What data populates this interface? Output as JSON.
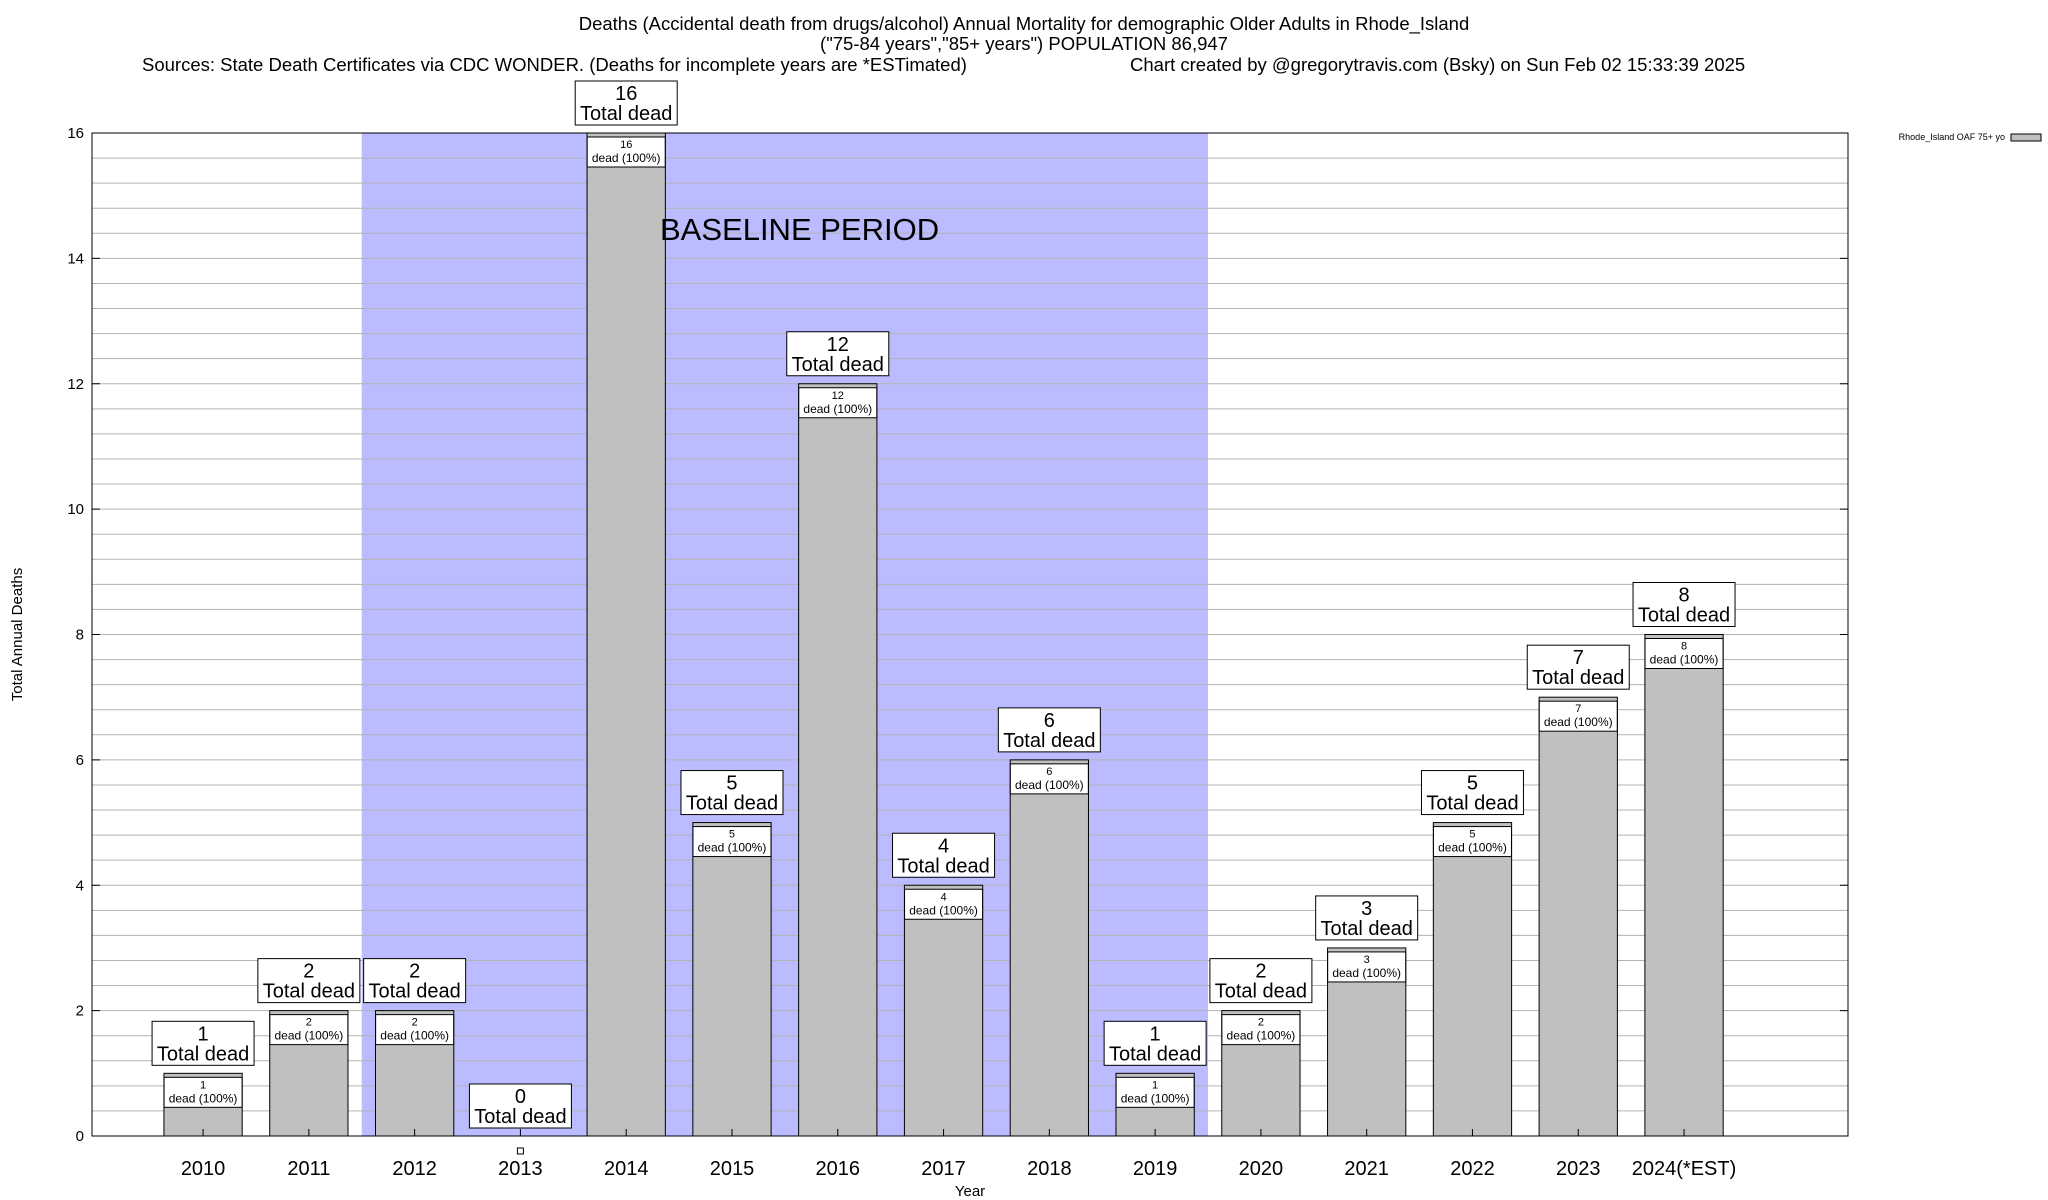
{
  "chart_data": {
    "type": "bar",
    "title": "Deaths (Accidental death from drugs/alcohol) Annual Mortality for demographic Older Adults in Rhode_Island",
    "subtitle": "(\"75-84 years\",\"85+ years\") POPULATION 86,947",
    "source_note": "Sources: State Death Certificates via CDC WONDER. (Deaths for incomplete years are *ESTimated)",
    "credit": "Chart created by @gregorytravis.com (Bsky) on Sun Feb 02 15:33:39 2025",
    "xlabel": "Year",
    "ylabel": "Total Annual Deaths",
    "ylim": [
      0,
      16
    ],
    "yticks": [
      0,
      2,
      4,
      6,
      8,
      10,
      12,
      14,
      16
    ],
    "grid": true,
    "categories": [
      "2010",
      "2011",
      "2012",
      "2013",
      "2014",
      "2015",
      "2016",
      "2017",
      "2018",
      "2019",
      "2020",
      "2021",
      "2022",
      "2023",
      "2024(*EST)"
    ],
    "series": [
      {
        "name": "Rhode_Island OAF 75+ yo",
        "values": [
          1,
          2,
          2,
          0,
          16,
          5,
          12,
          4,
          6,
          1,
          2,
          3,
          5,
          7,
          8
        ]
      }
    ],
    "total_label": "Total dead",
    "inner_label_suffix": "dead (100%)",
    "baseline": {
      "label": "BASELINE PERIOD",
      "from": "2012",
      "to": "2019"
    },
    "legend_position": "top-right",
    "colors": {
      "bar": "#c0c0c0",
      "baseline": "#bbbbff",
      "grid": "#b3b3b3"
    }
  }
}
